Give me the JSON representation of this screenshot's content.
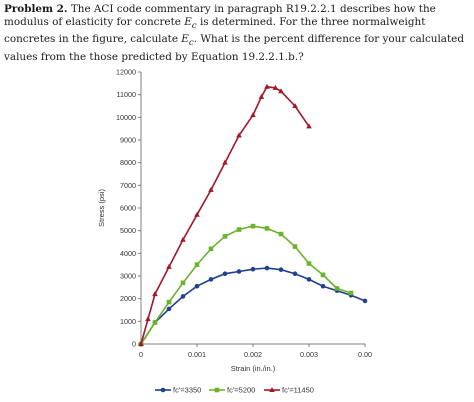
{
  "problem": {
    "heading": "Problem 2.",
    "text_1": " The ACI code commentary in paragraph R19.2.2.1 describes how the modulus of elasticity for concrete ",
    "ec_symbol": "E",
    "ec_sub": "c",
    "text_2": " is determined.  For the three normalweight concretes in the figure, calculate ",
    "text_3": ".  What is the percent difference for your calculated values from the those predicted by Equation 19.2.2.1.b.?"
  },
  "chart_data": {
    "type": "line",
    "xlabel": "Strain (in./in.)",
    "ylabel": "Stress (psi)",
    "xlim": [
      0,
      0.004
    ],
    "ylim": [
      0,
      12000
    ],
    "x_ticks": [
      "0",
      "0.001",
      "0.002",
      "0.003",
      "0.00"
    ],
    "y_ticks": [
      "0",
      "1000",
      "2000",
      "3000",
      "4000",
      "5000",
      "6000",
      "7000",
      "8000",
      "9000",
      "10000",
      "11000",
      "12000"
    ],
    "legend_position": "bottom",
    "grid": false,
    "series": [
      {
        "name": "fc'=3350",
        "color": "#1f3f8f",
        "marker": "circle",
        "points": [
          [
            0,
            0
          ],
          [
            0.00025,
            950
          ],
          [
            0.0005,
            1550
          ],
          [
            0.00075,
            2100
          ],
          [
            0.001,
            2550
          ],
          [
            0.00125,
            2850
          ],
          [
            0.0015,
            3100
          ],
          [
            0.00175,
            3200
          ],
          [
            0.002,
            3300
          ],
          [
            0.00225,
            3350
          ],
          [
            0.0025,
            3280
          ],
          [
            0.00275,
            3100
          ],
          [
            0.003,
            2850
          ],
          [
            0.00325,
            2550
          ],
          [
            0.0035,
            2350
          ],
          [
            0.00375,
            2150
          ],
          [
            0.004,
            1900
          ]
        ]
      },
      {
        "name": "fc'=5200",
        "color": "#6cb22b",
        "marker": "square",
        "points": [
          [
            0,
            0
          ],
          [
            0.00025,
            950
          ],
          [
            0.0005,
            1850
          ],
          [
            0.00075,
            2700
          ],
          [
            0.001,
            3500
          ],
          [
            0.00125,
            4200
          ],
          [
            0.0015,
            4750
          ],
          [
            0.00175,
            5050
          ],
          [
            0.002,
            5200
          ],
          [
            0.00225,
            5100
          ],
          [
            0.0025,
            4850
          ],
          [
            0.00275,
            4300
          ],
          [
            0.003,
            3550
          ],
          [
            0.00325,
            3050
          ],
          [
            0.0035,
            2450
          ],
          [
            0.00375,
            2250
          ]
        ]
      },
      {
        "name": "fc'=11450",
        "color": "#a3172a",
        "marker": "triangle",
        "points": [
          [
            0,
            0
          ],
          [
            0.000125,
            1100
          ],
          [
            0.00025,
            2200
          ],
          [
            0.0005,
            3400
          ],
          [
            0.00075,
            4600
          ],
          [
            0.001,
            5700
          ],
          [
            0.00125,
            6800
          ],
          [
            0.0015,
            8000
          ],
          [
            0.00175,
            9200
          ],
          [
            0.002,
            10100
          ],
          [
            0.00215,
            10900
          ],
          [
            0.00225,
            11350
          ],
          [
            0.0024,
            11300
          ],
          [
            0.0025,
            11150
          ],
          [
            0.00275,
            10500
          ],
          [
            0.003,
            9600
          ]
        ]
      }
    ]
  }
}
